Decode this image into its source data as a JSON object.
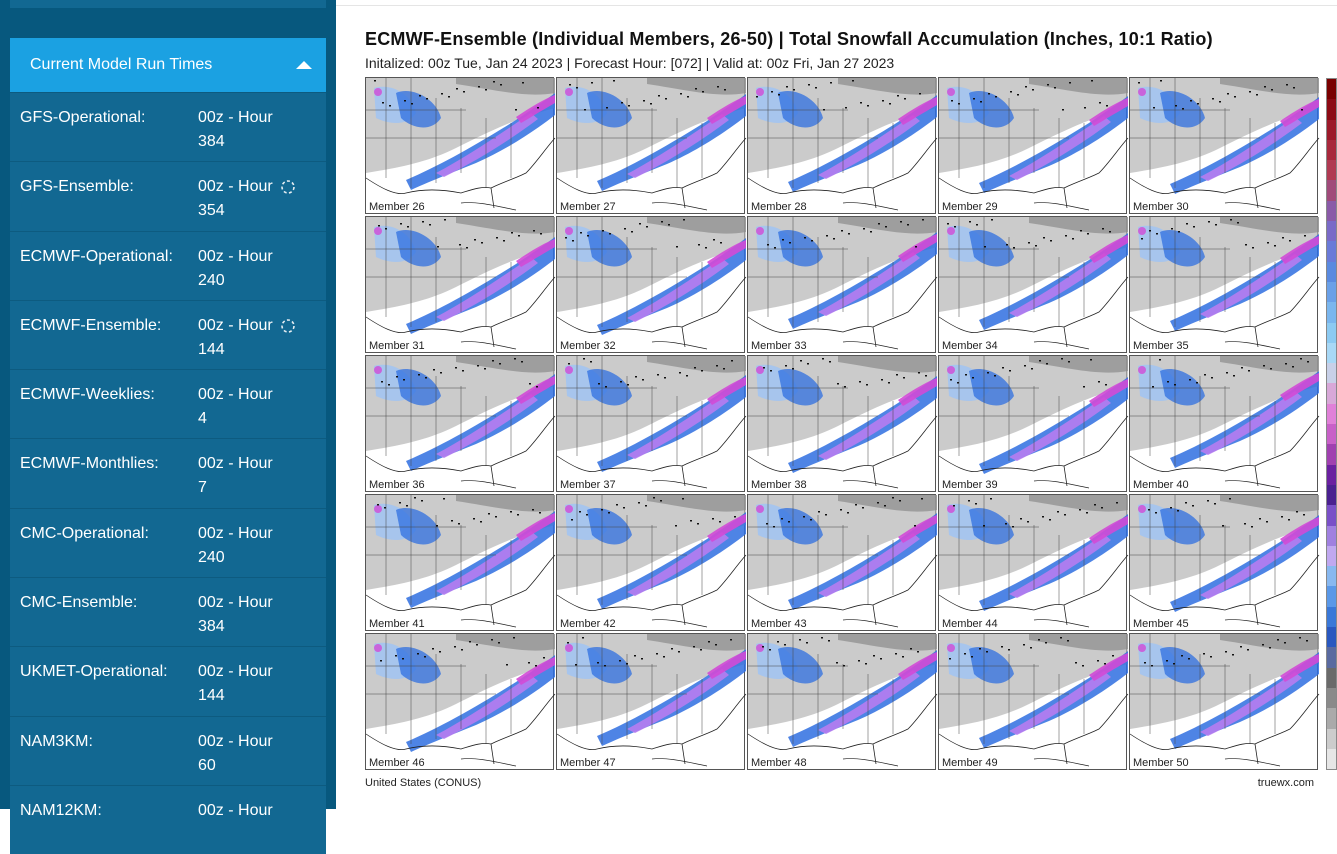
{
  "sidebar": {
    "panel_title": "Current Model Run Times",
    "rows": [
      {
        "model": "GFS-Operational:",
        "time": "00z - Hour 384",
        "loading": false
      },
      {
        "model": "GFS-Ensemble:",
        "time": "00z - Hour 354",
        "loading": true
      },
      {
        "model": "ECMWF-Operational:",
        "time": "00z - Hour 240",
        "loading": false
      },
      {
        "model": "ECMWF-Ensemble:",
        "time": "00z - Hour 144",
        "loading": true
      },
      {
        "model": "ECMWF-Weeklies:",
        "time": "00z - Hour 4",
        "loading": false
      },
      {
        "model": "ECMWF-Monthlies:",
        "time": "00z - Hour 7",
        "loading": false
      },
      {
        "model": "CMC-Operational:",
        "time": "00z - Hour 240",
        "loading": false
      },
      {
        "model": "CMC-Ensemble:",
        "time": "00z - Hour 384",
        "loading": false
      },
      {
        "model": "UKMET-Operational:",
        "time": "00z - Hour 144",
        "loading": false
      },
      {
        "model": "NAM3KM:",
        "time": "00z - Hour 60",
        "loading": false
      },
      {
        "model": "NAM12KM:",
        "time": "00z - Hour",
        "loading": false
      }
    ]
  },
  "main": {
    "title": "ECMWF-Ensemble (Individual Members, 26-50) | Total Snowfall Accumulation (Inches, 10:1 Ratio)",
    "subtitle": "Initalized: 00z Tue, Jan 24 2023 | Forecast Hour: [072] | Valid at: 00z Fri, Jan 27 2023",
    "members": [
      "Member 26",
      "Member 27",
      "Member 28",
      "Member 29",
      "Member 30",
      "Member 31",
      "Member 32",
      "Member 33",
      "Member 34",
      "Member 35",
      "Member 36",
      "Member 37",
      "Member 38",
      "Member 39",
      "Member 40",
      "Member 41",
      "Member 42",
      "Member 43",
      "Member 44",
      "Member 45",
      "Member 46",
      "Member 47",
      "Member 48",
      "Member 49",
      "Member 50"
    ],
    "footer_region": "United States (CONUS)",
    "footer_brand": "truewx.com"
  },
  "colors": {
    "sidebar_bg": "#07587e",
    "row_bg": "#126892",
    "header_bg": "#1ba1e2",
    "snow_light": "#9ec3f5",
    "snow_blue": "#2f6fe0",
    "snow_purple": "#b77cf0",
    "snow_magenta": "#d24ad6",
    "land_gray": "#b5b5b5"
  },
  "scale_colors": [
    "#7a0000",
    "#8c0a14",
    "#9c1a2a",
    "#a8283c",
    "#b03a52",
    "#a04a7a",
    "#8a5aa8",
    "#7a6ac8",
    "#6a7ad8",
    "#5a8ae0",
    "#6aa0e8",
    "#7ab6ee",
    "#8ccaf2",
    "#a8d8f6",
    "#c8d0e8",
    "#d8a8d8",
    "#e080d8",
    "#c860c8",
    "#a040b0",
    "#6a20a0",
    "#4a2090",
    "#7a50c8",
    "#a080e0",
    "#c0a8f0",
    "#88b8f0",
    "#5a98e8",
    "#3a78d8",
    "#2a58c0",
    "#5a6aa0",
    "#6a6a6a",
    "#8a8a8a",
    "#aaaaaa",
    "#cccccc",
    "#e6e6e6"
  ]
}
